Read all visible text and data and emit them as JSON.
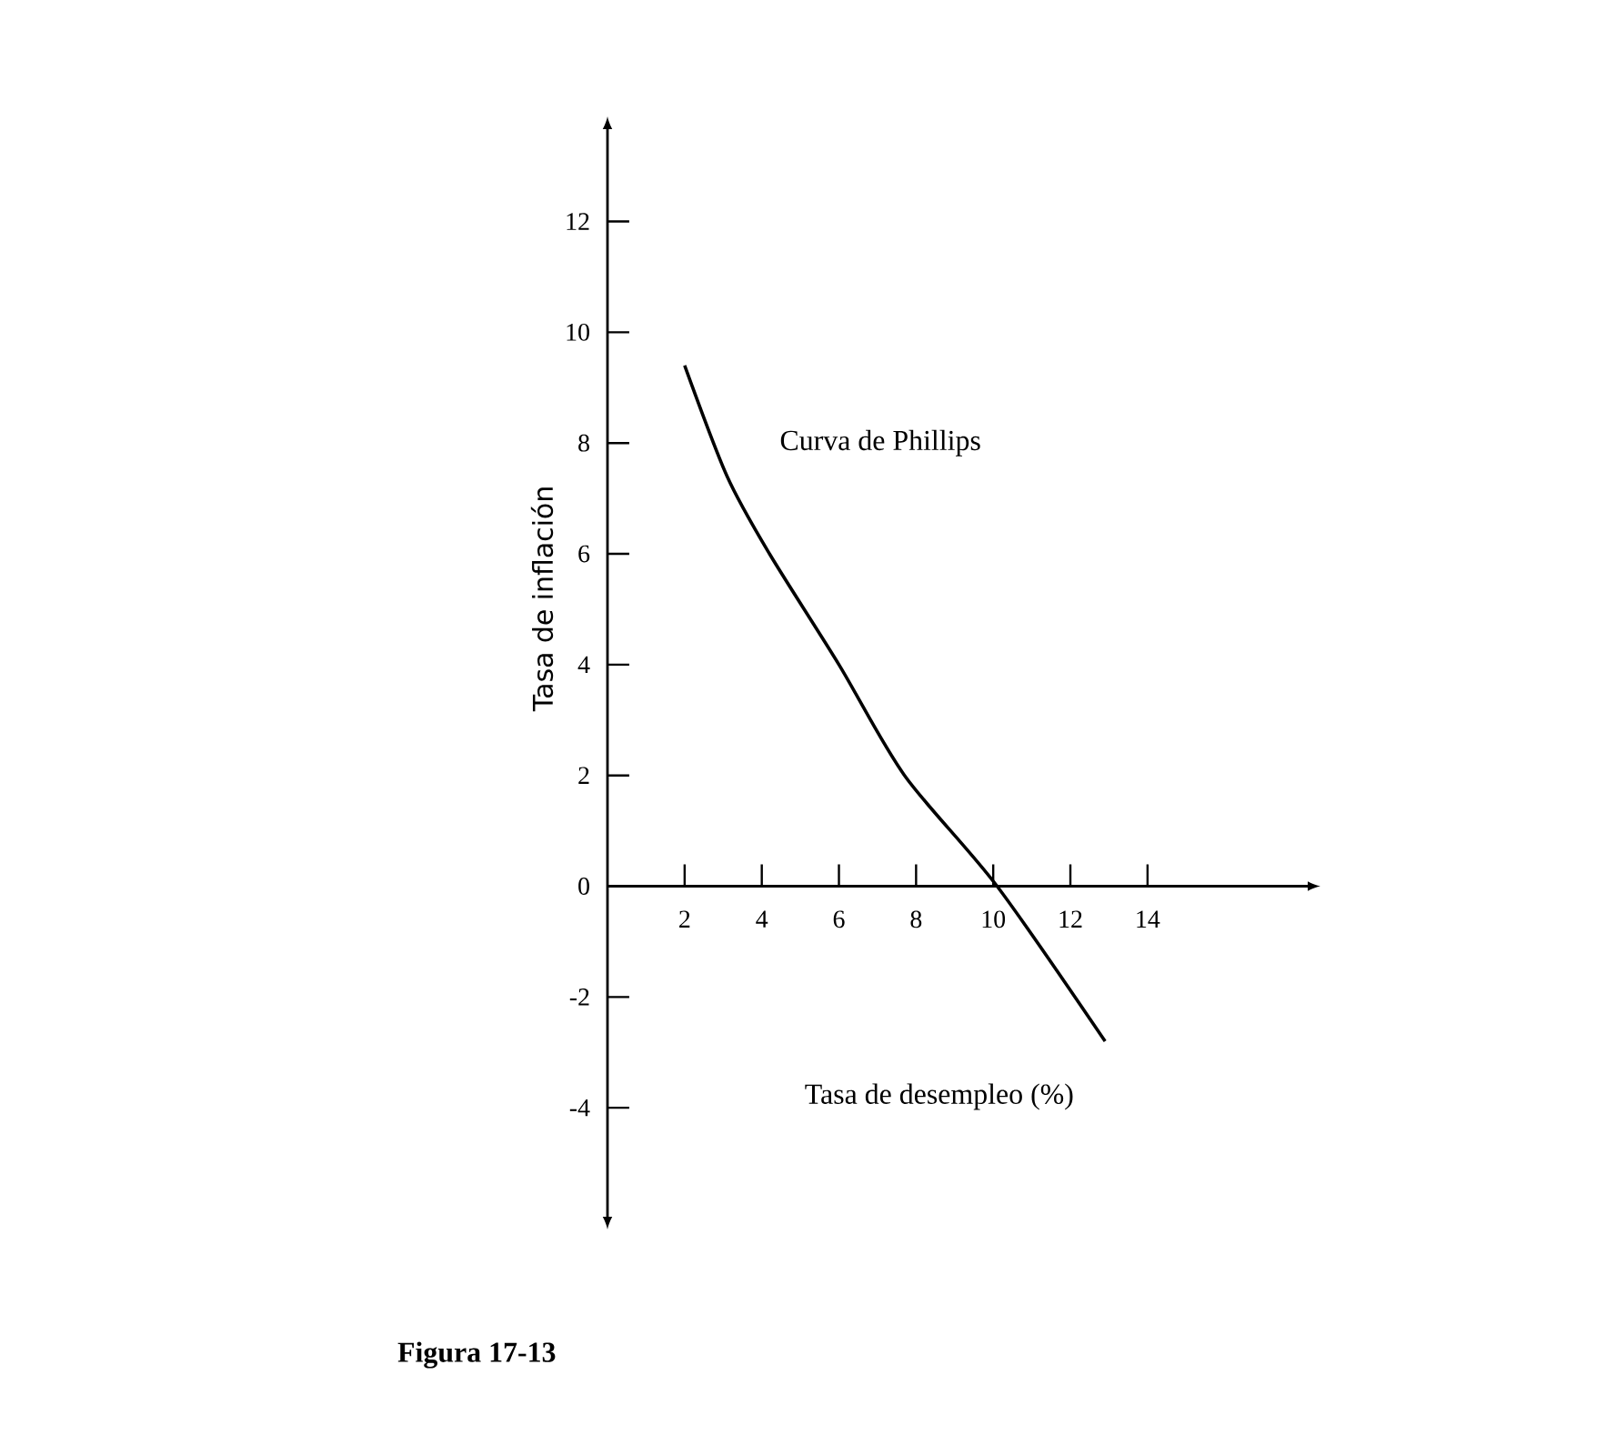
{
  "chart_data": {
    "type": "line",
    "xlabel": "Tasa de desempleo (%)",
    "ylabel": "Tasa de inflación",
    "annotations": [
      "Figura 17-13"
    ],
    "x": [
      2,
      3.1,
      4.2,
      6,
      7.7,
      10.1,
      12.9
    ],
    "series": [
      {
        "name": "Curva de Phillips",
        "color": "#000000",
        "values": [
          9.4,
          7.4,
          6,
          4,
          2,
          0,
          -2.8
        ]
      }
    ],
    "xlim": [
      0,
      18.2
    ],
    "ylim": [
      -6,
      13.7
    ],
    "xticks": [
      2,
      4,
      6,
      8,
      10,
      12,
      14
    ],
    "yticks": [
      -4,
      -2,
      0,
      2,
      4,
      6,
      8,
      10,
      12
    ],
    "grid": false,
    "marker": "none",
    "line_style": "solid"
  }
}
